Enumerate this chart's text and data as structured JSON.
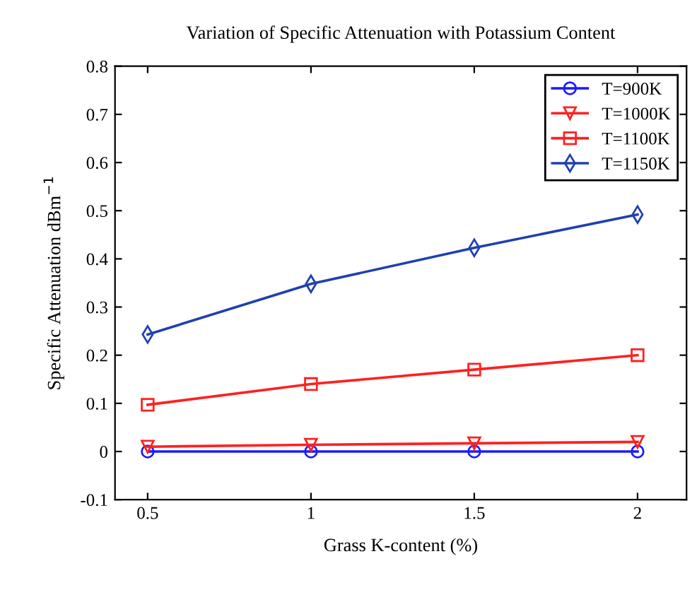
{
  "chart_data": {
    "type": "line",
    "title": "Variation of Specific Attenuation with Potassium Content",
    "xlabel": "Grass K-content (%)",
    "ylabel": "Specific Attenuation dBm$^{−1}$",
    "x": [
      0.5,
      1,
      1.5,
      2
    ],
    "series": [
      {
        "name": "T=900K",
        "color": "#1a1aff",
        "marker": "circle",
        "values": [
          0,
          0,
          0,
          0
        ]
      },
      {
        "name": "T=1000K",
        "color": "#ff2020",
        "marker": "triangle",
        "values": [
          0.01,
          0.014,
          0.017,
          0.02
        ]
      },
      {
        "name": "T=1100K",
        "color": "#ff2020",
        "marker": "square",
        "values": [
          0.097,
          0.14,
          0.17,
          0.2
        ]
      },
      {
        "name": "T=1150K",
        "color": "#2040b0",
        "marker": "diamond",
        "values": [
          0.243,
          0.348,
          0.423,
          0.492
        ]
      }
    ],
    "xlim": [
      0.4,
      2.15
    ],
    "ylim": [
      -0.1,
      0.8
    ],
    "xticks": [
      0.5,
      1,
      1.5,
      2
    ],
    "yticks": [
      -0.1,
      0,
      0.1,
      0.2,
      0.3,
      0.4,
      0.5,
      0.6,
      0.7,
      0.8
    ],
    "grid": false,
    "legend": "top right",
    "line_style": "solid"
  }
}
